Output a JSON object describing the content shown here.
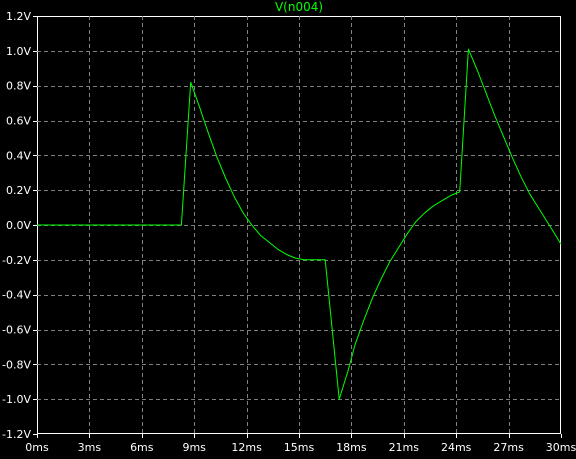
{
  "chart_data": {
    "type": "line",
    "title": "V(n004)",
    "xlabel": "",
    "ylabel": "",
    "xlim": [
      0,
      30
    ],
    "ylim": [
      -1.2,
      1.2
    ],
    "grid": true,
    "x_ticks": [
      {
        "value": 0,
        "label": "0ms"
      },
      {
        "value": 3,
        "label": "3ms"
      },
      {
        "value": 6,
        "label": "6ms"
      },
      {
        "value": 9,
        "label": "9ms"
      },
      {
        "value": 12,
        "label": "12ms"
      },
      {
        "value": 15,
        "label": "15ms"
      },
      {
        "value": 18,
        "label": "18ms"
      },
      {
        "value": 21,
        "label": "21ms"
      },
      {
        "value": 24,
        "label": "24ms"
      },
      {
        "value": 27,
        "label": "27ms"
      },
      {
        "value": 30,
        "label": "30ms"
      }
    ],
    "y_ticks": [
      {
        "value": 1.2,
        "label": "1.2V"
      },
      {
        "value": 1.0,
        "label": "1.0V"
      },
      {
        "value": 0.8,
        "label": "0.8V"
      },
      {
        "value": 0.6,
        "label": "0.6V"
      },
      {
        "value": 0.4,
        "label": "0.4V"
      },
      {
        "value": 0.2,
        "label": "0.2V"
      },
      {
        "value": 0.0,
        "label": "0.0V"
      },
      {
        "value": -0.2,
        "label": "-0.2V"
      },
      {
        "value": -0.4,
        "label": "-0.4V"
      },
      {
        "value": -0.6,
        "label": "-0.6V"
      },
      {
        "value": -0.8,
        "label": "-0.8V"
      },
      {
        "value": -1.0,
        "label": "-1.0V"
      },
      {
        "value": -1.2,
        "label": "-1.2V"
      }
    ],
    "series": [
      {
        "name": "V(n004)",
        "color": "#00ff00",
        "x": [
          0,
          2,
          4,
          6,
          7.5,
          8.27,
          8.8,
          9.3,
          9.8,
          10.3,
          10.8,
          11.3,
          11.8,
          12.3,
          12.8,
          13.3,
          13.8,
          14.3,
          14.8,
          15.3,
          15.8,
          16.3,
          16.5,
          17.3,
          17.8,
          18.2,
          18.7,
          19.2,
          19.7,
          20.2,
          20.7,
          21.2,
          21.7,
          22.2,
          22.7,
          23.2,
          23.7,
          24.2,
          24.7,
          25.2,
          25.7,
          26.2,
          26.7,
          27.2,
          27.7,
          28.2,
          28.7,
          29.2,
          29.7,
          30.0
        ],
        "y": [
          0,
          0,
          0,
          0,
          0,
          0,
          0.82,
          0.68,
          0.53,
          0.39,
          0.27,
          0.16,
          0.07,
          0.0,
          -0.06,
          -0.1,
          -0.14,
          -0.17,
          -0.19,
          -0.2,
          -0.2,
          -0.2,
          -0.2,
          -1.0,
          -0.84,
          -0.69,
          -0.55,
          -0.42,
          -0.31,
          -0.21,
          -0.13,
          -0.05,
          0.02,
          0.07,
          0.11,
          0.14,
          0.17,
          0.19,
          1.01,
          0.89,
          0.76,
          0.63,
          0.51,
          0.39,
          0.28,
          0.18,
          0.1,
          0.02,
          -0.06,
          -0.11
        ]
      }
    ]
  }
}
